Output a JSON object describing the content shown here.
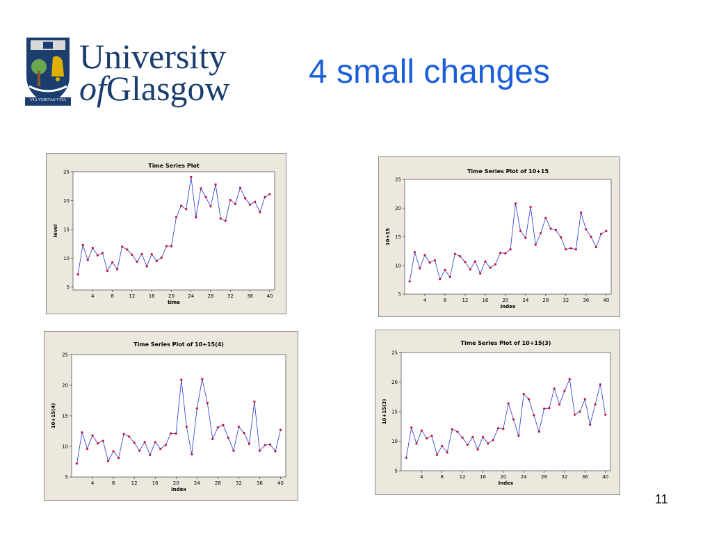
{
  "slide": {
    "title": "4 small changes",
    "page_number": "11"
  },
  "logo": {
    "line1": "University",
    "line2a": "of",
    "line2b": "Glasgow",
    "motto": "VIA VERITAS VITA"
  },
  "colors": {
    "title": "#1a5fd8",
    "line": "#2233cc",
    "marker": "#cc1133",
    "frame": "#ece8de",
    "logo": "#1b3e6f"
  },
  "chart_data": [
    {
      "type": "line",
      "title": "Time Series Plot",
      "xlabel": "time",
      "ylabel": "level",
      "xlim": [
        0,
        41
      ],
      "ylim": [
        4.5,
        25
      ],
      "xticks": [
        4,
        8,
        12,
        16,
        20,
        24,
        28,
        32,
        36,
        40
      ],
      "yticks": [
        5,
        10,
        15,
        20,
        25
      ],
      "x": [
        1,
        2,
        3,
        4,
        5,
        6,
        7,
        8,
        9,
        10,
        11,
        12,
        13,
        14,
        15,
        16,
        17,
        18,
        19,
        20,
        21,
        22,
        23,
        24,
        25,
        26,
        27,
        28,
        29,
        30,
        31,
        32,
        33,
        34,
        35,
        36,
        37,
        38,
        39,
        40
      ],
      "values": [
        7.2,
        12.3,
        9.7,
        11.8,
        10.5,
        10.9,
        7.8,
        9.3,
        8.1,
        12,
        11.5,
        10.6,
        9.4,
        10.7,
        8.6,
        10.7,
        9.5,
        10.1,
        12.1,
        12.1,
        17.1,
        19.1,
        18.5,
        24.1,
        17.1,
        22.1,
        20.6,
        19,
        22.8,
        16.9,
        16.5,
        20.1,
        19.4,
        22.2,
        20.4,
        19.3,
        19.8,
        18,
        20.6,
        21.1
      ]
    },
    {
      "type": "line",
      "title": "Time Series Plot of 10+15",
      "xlabel": "Index",
      "ylabel": "10+15",
      "xlim": [
        0,
        41
      ],
      "ylim": [
        5,
        25
      ],
      "xticks": [
        4,
        8,
        12,
        16,
        20,
        24,
        28,
        32,
        36,
        40
      ],
      "yticks": [
        5,
        10,
        15,
        20,
        25
      ],
      "x": [
        1,
        2,
        3,
        4,
        5,
        6,
        7,
        8,
        9,
        10,
        11,
        12,
        13,
        14,
        15,
        16,
        17,
        18,
        19,
        20,
        21,
        22,
        23,
        24,
        25,
        26,
        27,
        28,
        29,
        30,
        31,
        32,
        33,
        34,
        35,
        36,
        37,
        38,
        39,
        40
      ],
      "values": [
        7.2,
        12.3,
        9.5,
        11.8,
        10.5,
        10.9,
        7.6,
        9.2,
        8,
        12,
        11.6,
        10.6,
        9.3,
        10.7,
        8.6,
        10.7,
        9.6,
        10.2,
        12.2,
        12.1,
        12.8,
        20.8,
        16,
        14.8,
        20.2,
        13.6,
        15.6,
        18.3,
        16.4,
        16.2,
        14.9,
        12.8,
        13,
        12.8,
        19.2,
        16.3,
        15,
        13.2,
        15.5,
        16
      ]
    },
    {
      "type": "line",
      "title": "Time Series Plot of 10+15(4)",
      "xlabel": "Index",
      "ylabel": "10+15(4)",
      "xlim": [
        0,
        41
      ],
      "ylim": [
        5,
        25
      ],
      "xticks": [
        4,
        8,
        12,
        16,
        20,
        24,
        28,
        32,
        36,
        40
      ],
      "yticks": [
        5,
        10,
        15,
        20,
        25
      ],
      "x": [
        1,
        2,
        3,
        4,
        5,
        6,
        7,
        8,
        9,
        10,
        11,
        12,
        13,
        14,
        15,
        16,
        17,
        18,
        19,
        20,
        21,
        22,
        23,
        24,
        25,
        26,
        27,
        28,
        29,
        30,
        31,
        32,
        33,
        34,
        35,
        36,
        37,
        38,
        39,
        40
      ],
      "values": [
        7.2,
        12.3,
        9.6,
        11.8,
        10.5,
        10.9,
        7.6,
        9.2,
        8.1,
        12,
        11.6,
        10.6,
        9.3,
        10.7,
        8.6,
        10.7,
        9.6,
        10.2,
        12.1,
        12.1,
        20.9,
        13.2,
        8.7,
        16.2,
        21,
        17.1,
        11.2,
        13.1,
        13.5,
        11.4,
        9.3,
        13.2,
        12.2,
        10.4,
        17.3,
        9.3,
        10.2,
        10.3,
        9.2,
        12.7
      ]
    },
    {
      "type": "line",
      "title": "Time Series Plot of 10+15(3)",
      "xlabel": "Index",
      "ylabel": "10+15(3)",
      "xlim": [
        0,
        41
      ],
      "ylim": [
        5,
        25
      ],
      "xticks": [
        4,
        8,
        12,
        16,
        20,
        24,
        28,
        32,
        36,
        40
      ],
      "yticks": [
        5,
        10,
        15,
        20,
        25
      ],
      "x": [
        1,
        2,
        3,
        4,
        5,
        6,
        7,
        8,
        9,
        10,
        11,
        12,
        13,
        14,
        15,
        16,
        17,
        18,
        19,
        20,
        21,
        22,
        23,
        24,
        25,
        26,
        27,
        28,
        29,
        30,
        31,
        32,
        33,
        34,
        35,
        36,
        37,
        38,
        39,
        40
      ],
      "values": [
        7.2,
        12.3,
        9.6,
        11.8,
        10.5,
        10.9,
        7.7,
        9.2,
        8.1,
        12,
        11.6,
        10.6,
        9.4,
        10.7,
        8.6,
        10.7,
        9.6,
        10.2,
        12.2,
        12.1,
        16.4,
        13.7,
        10.9,
        18,
        17.1,
        14.4,
        11.6,
        15.5,
        15.6,
        18.9,
        16.2,
        18.5,
        20.5,
        14.5,
        15,
        17.1,
        12.8,
        16.2,
        19.6,
        14.5
      ]
    }
  ]
}
